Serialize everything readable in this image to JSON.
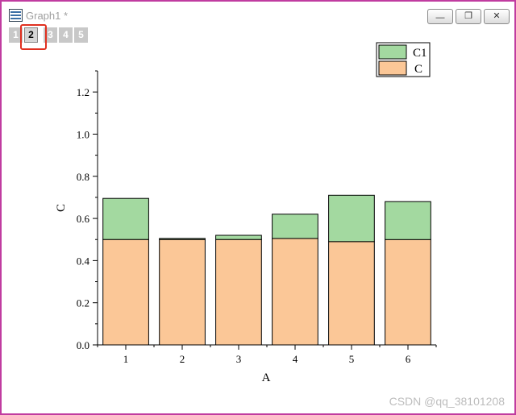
{
  "window": {
    "title": "Graph1 *"
  },
  "layer_tabs": [
    "1",
    "2",
    "3",
    "4",
    "5"
  ],
  "active_layer": "2",
  "window_controls": {
    "minimize": "—",
    "restore": "❐",
    "close": "✕"
  },
  "chart_data": {
    "type": "bar",
    "stacked": true,
    "categories": [
      "1",
      "2",
      "3",
      "4",
      "5",
      "6"
    ],
    "series": [
      {
        "name": "C",
        "values": [
          0.5,
          0.5,
          0.5,
          0.505,
          0.49,
          0.5
        ],
        "color": "#fbc797"
      },
      {
        "name": "C1",
        "values": [
          0.195,
          0.005,
          0.02,
          0.115,
          0.22,
          0.18
        ],
        "color": "#a3d9a0"
      }
    ],
    "xlabel": "A",
    "ylabel": "C",
    "ylim": [
      0,
      1.3
    ],
    "yticks": [
      "0.0",
      "0.2",
      "0.4",
      "0.6",
      "0.8",
      "1.0",
      "1.2"
    ],
    "legend_position": "top-right",
    "grid": false
  },
  "watermark": "CSDN @qq_38101208"
}
